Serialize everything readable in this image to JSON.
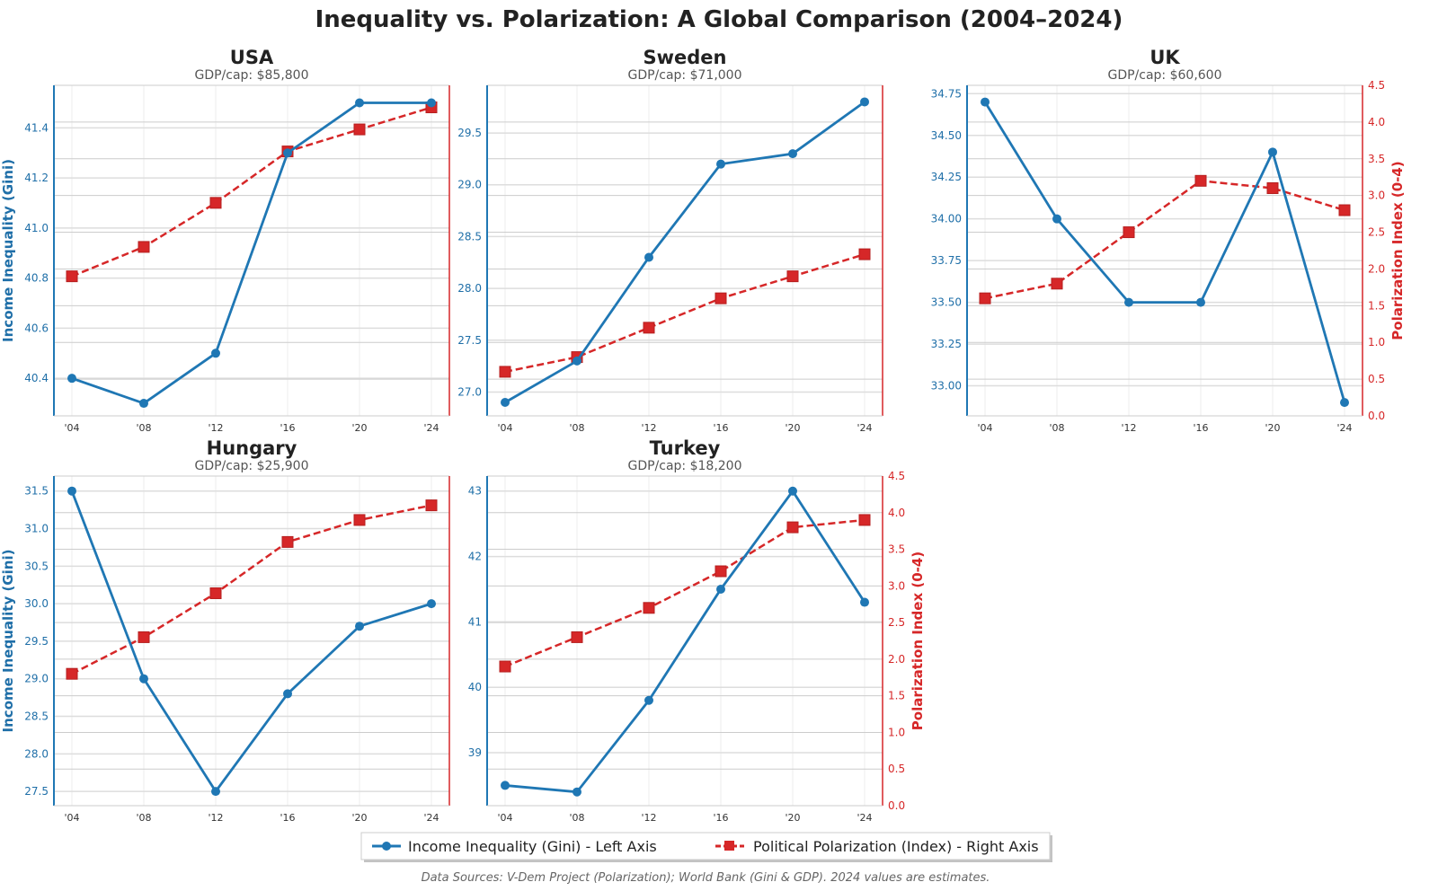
{
  "chart_data": {
    "type": "line",
    "title": "Inequality vs. Polarization: A Global Comparison (2004–2024)",
    "footer": "Data Sources: V-Dem Project (Polarization); World Bank (Gini & GDP). 2024 values are estimates.",
    "x_ticks": [
      "'04",
      "'08",
      "'12",
      "'16",
      "'20",
      "'24"
    ],
    "left_ylabel": "Income Inequality (Gini)",
    "right_ylabel": "Polarization Index (0-4)",
    "right_ylim": [
      0,
      4.5
    ],
    "right_ticks": [
      "0.0",
      "0.5",
      "1.0",
      "1.5",
      "2.0",
      "2.5",
      "3.0",
      "3.5",
      "4.0",
      "4.5"
    ],
    "legend": {
      "placement": "bottom-center",
      "entries": [
        "Income Inequality (Gini) - Left Axis",
        "Political Polarization (Index) - Right Axis"
      ]
    },
    "colors": {
      "gini": "#1f77b4",
      "polarization": "#d62728"
    },
    "panels": [
      {
        "country": "USA",
        "subtitle": "GDP/cap: $85,800",
        "gini": [
          40.4,
          40.3,
          40.5,
          41.3,
          41.5,
          41.5
        ],
        "polarization": [
          1.9,
          2.3,
          2.9,
          3.6,
          3.9,
          4.2
        ],
        "left_ylim": [
          40.25,
          41.57
        ],
        "left_ticks": [
          "40.4",
          "40.6",
          "40.8",
          "41.0",
          "41.2",
          "41.4"
        ]
      },
      {
        "country": "Sweden",
        "subtitle": "GDP/cap: $71,000",
        "gini": [
          26.9,
          27.3,
          28.3,
          29.2,
          29.3,
          29.8
        ],
        "polarization": [
          0.6,
          0.8,
          1.2,
          1.6,
          1.9,
          2.2
        ],
        "left_ylim": [
          26.77,
          29.96
        ],
        "left_ticks": [
          "27.0",
          "27.5",
          "28.0",
          "28.5",
          "29.0",
          "29.5"
        ]
      },
      {
        "country": "UK",
        "subtitle": "GDP/cap: $60,600",
        "gini": [
          34.7,
          34.0,
          33.5,
          33.5,
          34.4,
          32.9
        ],
        "polarization": [
          1.6,
          1.8,
          2.5,
          3.2,
          3.1,
          2.8
        ],
        "left_ylim": [
          32.82,
          34.8
        ],
        "left_ticks": [
          "33.00",
          "33.25",
          "33.50",
          "33.75",
          "34.00",
          "34.25",
          "34.50",
          "34.75"
        ]
      },
      {
        "country": "Hungary",
        "subtitle": "GDP/cap: $25,900",
        "gini": [
          31.5,
          29.0,
          27.5,
          28.8,
          29.7,
          30.0
        ],
        "polarization": [
          1.8,
          2.3,
          2.9,
          3.6,
          3.9,
          4.1
        ],
        "left_ylim": [
          27.31,
          31.7
        ],
        "left_ticks": [
          "27.5",
          "28.0",
          "28.5",
          "29.0",
          "29.5",
          "30.0",
          "30.5",
          "31.0",
          "31.5"
        ]
      },
      {
        "country": "Turkey",
        "subtitle": "GDP/cap: $18,200",
        "gini": [
          38.5,
          38.4,
          39.8,
          41.5,
          43.0,
          41.3
        ],
        "polarization": [
          1.9,
          2.3,
          2.7,
          3.2,
          3.8,
          3.9
        ],
        "left_ylim": [
          38.19,
          43.23
        ],
        "left_ticks": [
          "39",
          "40",
          "41",
          "42",
          "43"
        ]
      }
    ]
  }
}
